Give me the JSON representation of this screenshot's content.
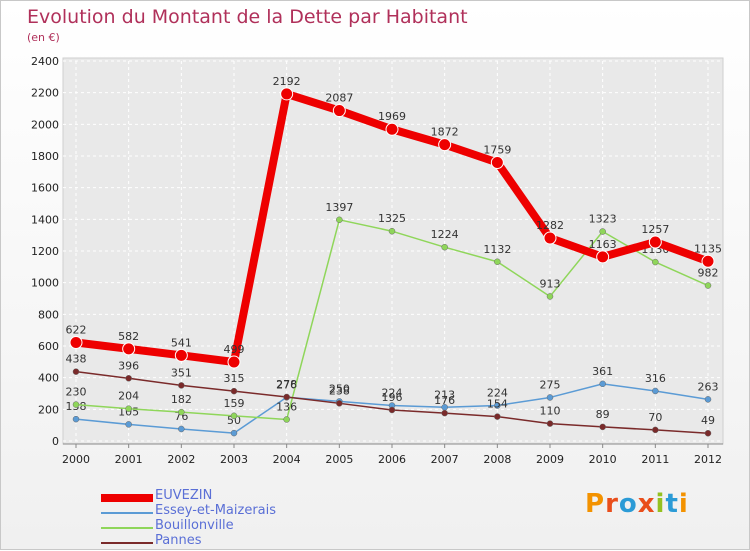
{
  "header": {
    "title": "Evolution du Montant de la Dette par Habitant",
    "subtitle": "(en €)"
  },
  "chart_data": {
    "type": "line",
    "categories": [
      "2000",
      "2001",
      "2002",
      "2003",
      "2004",
      "2005",
      "2006",
      "2007",
      "2008",
      "2009",
      "2010",
      "2011",
      "2012"
    ],
    "ylim": [
      0,
      2400
    ],
    "yticks": [
      0,
      200,
      400,
      600,
      800,
      1000,
      1200,
      1400,
      1600,
      1800,
      2000,
      2200,
      2400
    ],
    "grid": true,
    "legend_position": "bottom-left",
    "series": [
      {
        "name": "EUVEZIN",
        "color": "#ee0000",
        "values": [
          622,
          582,
          541,
          499,
          2192,
          2087,
          1969,
          1872,
          1759,
          1282,
          1163,
          1257,
          1135
        ]
      },
      {
        "name": "Essey-et-Maizerais",
        "color": "#5b9bd5",
        "values": [
          138,
          105,
          76,
          50,
          276,
          250,
          224,
          213,
          224,
          275,
          361,
          316,
          263
        ]
      },
      {
        "name": "Bouillonville",
        "color": "#8fd65a",
        "values": [
          230,
          204,
          182,
          159,
          136,
          1397,
          1325,
          1224,
          1132,
          913,
          1323,
          1130,
          982
        ]
      },
      {
        "name": "Pannes",
        "color": "#7a2a2a",
        "values": [
          438,
          396,
          351,
          315,
          278,
          238,
          196,
          176,
          154,
          110,
          89,
          70,
          49
        ]
      }
    ]
  },
  "legend": [
    {
      "label": "EUVEZIN",
      "color": "#ee0000"
    },
    {
      "label": "Essey-et-Maizerais",
      "color": "#5b9bd5"
    },
    {
      "label": "Bouillonville",
      "color": "#8fd65a"
    },
    {
      "label": "Pannes",
      "color": "#7a2a2a"
    }
  ],
  "logo": {
    "text": "Proxiti",
    "colors": [
      "#f39200",
      "#e94e1b",
      "#2b9bd6",
      "#e94e1b",
      "#95c11f",
      "#2b9bd6",
      "#f39200"
    ]
  }
}
